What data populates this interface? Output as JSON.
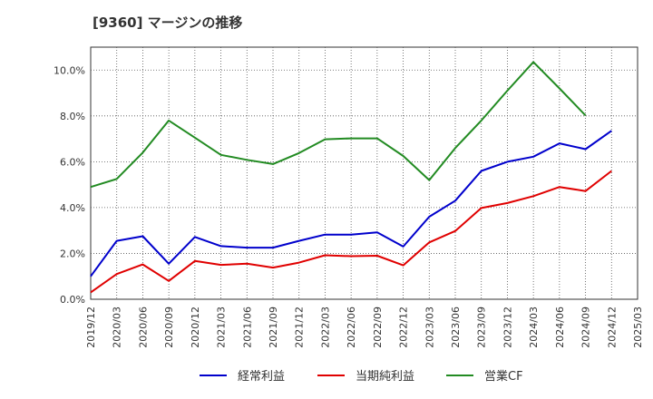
{
  "chart_data": {
    "type": "line",
    "title": "[9360]  マージンの推移",
    "xlabel": "",
    "ylabel": "",
    "x": [
      "2019/12",
      "2020/03",
      "2020/06",
      "2020/09",
      "2020/12",
      "2021/03",
      "2021/06",
      "2021/09",
      "2021/12",
      "2022/03",
      "2022/06",
      "2022/09",
      "2022/12",
      "2023/03",
      "2023/06",
      "2023/09",
      "2023/12",
      "2024/03",
      "2024/06",
      "2024/09",
      "2024/12",
      "2025/03"
    ],
    "ylim": [
      0,
      11
    ],
    "yticks": [
      0,
      2,
      4,
      6,
      8,
      10
    ],
    "ytick_labels": [
      "0.0%",
      "2.0%",
      "4.0%",
      "6.0%",
      "8.0%",
      "10.0%"
    ],
    "grid": true,
    "legend_position": "bottom",
    "series": [
      {
        "name": "経常利益",
        "color": "#0000cc",
        "values": [
          1.0,
          2.55,
          2.75,
          1.55,
          2.72,
          2.32,
          2.25,
          2.25,
          2.55,
          2.82,
          2.82,
          2.92,
          2.3,
          3.6,
          4.3,
          5.6,
          6.0,
          6.22,
          6.8,
          6.55,
          7.35,
          null
        ]
      },
      {
        "name": "当期純利益",
        "color": "#e00000",
        "values": [
          0.3,
          1.1,
          1.52,
          0.8,
          1.67,
          1.5,
          1.55,
          1.38,
          1.6,
          1.92,
          1.88,
          1.9,
          1.48,
          2.48,
          2.98,
          3.98,
          4.2,
          4.5,
          4.9,
          4.72,
          5.6,
          null
        ]
      },
      {
        "name": "営業CF",
        "color": "#228b22",
        "values": [
          4.9,
          5.25,
          6.4,
          7.8,
          7.05,
          6.3,
          6.08,
          5.9,
          6.38,
          6.98,
          7.02,
          7.02,
          6.25,
          5.2,
          6.6,
          7.8,
          9.1,
          10.35,
          9.2,
          8.02,
          null,
          null
        ]
      }
    ]
  }
}
